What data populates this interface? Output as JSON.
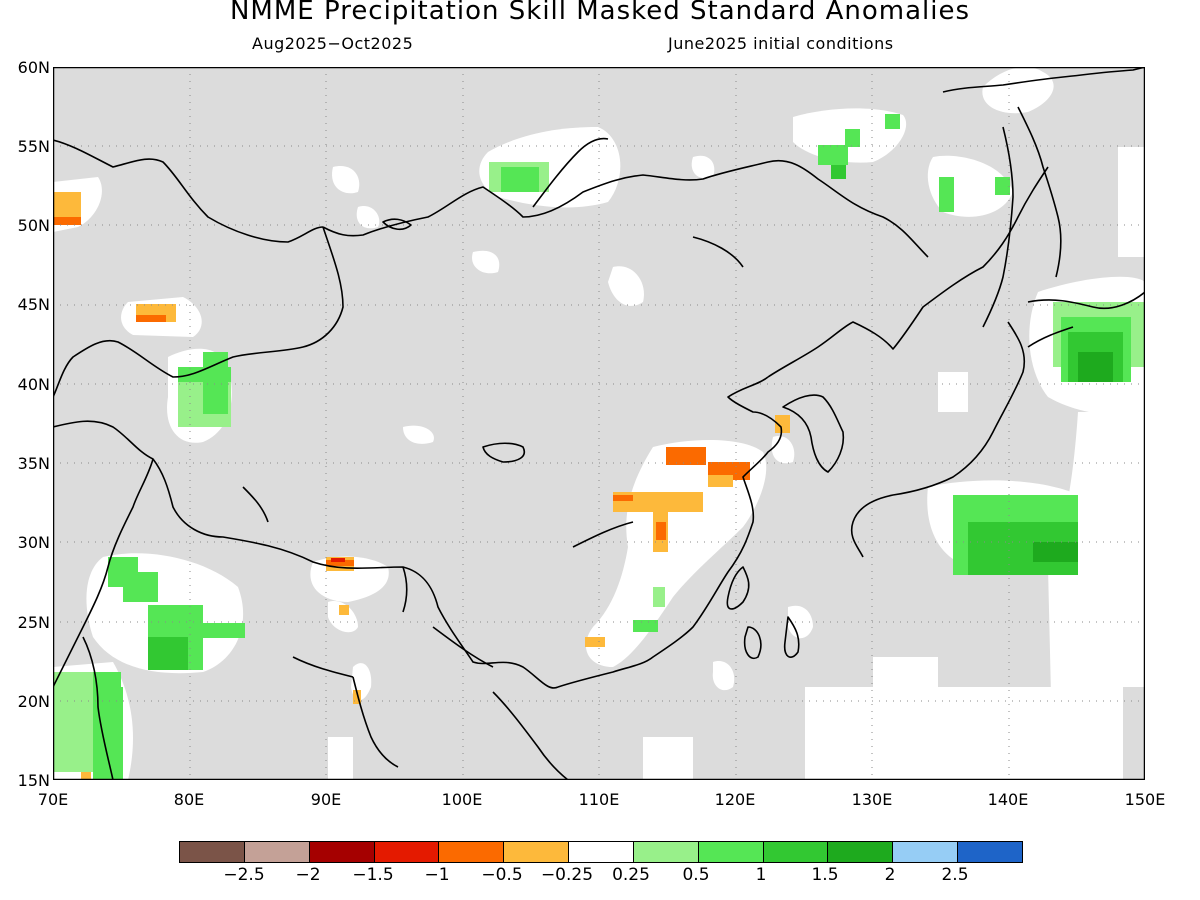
{
  "title": "NMME Precipitation Skill Masked Standard Anomalies",
  "subtitle_left": "Aug2025−Oct2025",
  "subtitle_right": "June2025 initial conditions",
  "lat_labels": [
    "60N",
    "55N",
    "50N",
    "45N",
    "40N",
    "35N",
    "30N",
    "25N",
    "20N",
    "15N"
  ],
  "lon_labels": [
    "70E",
    "80E",
    "90E",
    "100E",
    "110E",
    "120E",
    "130E",
    "140E",
    "150E"
  ],
  "colorbar": {
    "colors": [
      "#7b5448",
      "#c4a197",
      "#a50000",
      "#e41a00",
      "#fb6a00",
      "#fdb93b",
      "#ffffff",
      "#98f08a",
      "#55e655",
      "#32c832",
      "#1eaa1e",
      "#96cdf5",
      "#1e64c8"
    ],
    "labels": [
      "−2.5",
      "−2",
      "−1.5",
      "−1",
      "−0.5",
      "−0.25",
      "0.25",
      "0.5",
      "1",
      "1.5",
      "2",
      "2.5"
    ]
  },
  "colors": {
    "masked": "#dcdcdc",
    "neutral": "#ffffff",
    "coast": "#000000"
  }
}
